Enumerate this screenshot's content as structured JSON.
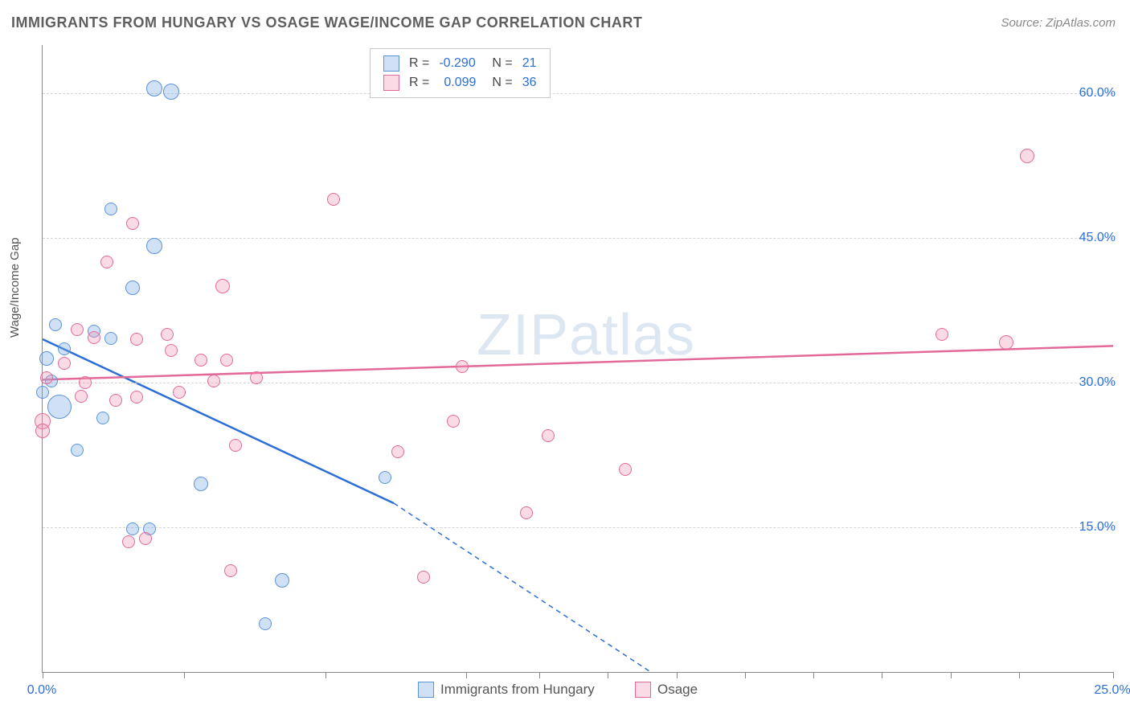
{
  "title": "IMMIGRANTS FROM HUNGARY VS OSAGE WAGE/INCOME GAP CORRELATION CHART",
  "source": "Source: ZipAtlas.com",
  "ylabel": "Wage/Income Gap",
  "watermark": "ZIPatlas",
  "chart": {
    "type": "scatter",
    "xlim": [
      0,
      25
    ],
    "ylim": [
      0,
      65
    ],
    "xtick_positions": [
      0,
      3.3,
      6.6,
      9.9,
      11.6,
      13.2,
      14.8,
      16.4,
      18.0,
      19.6,
      21.2,
      22.8,
      25.0
    ],
    "xtick_labels": {
      "0": "0.0%",
      "25": "25.0%"
    },
    "ytick_positions": [
      15,
      30,
      45,
      60
    ],
    "ytick_labels": [
      "15.0%",
      "30.0%",
      "45.0%",
      "60.0%"
    ],
    "grid_color": "#d5d5d5",
    "axis_color": "#888888",
    "background_color": "#ffffff",
    "label_fontsize": 15,
    "tick_fontsize": 16,
    "tick_label_color": "#2b6fd6"
  },
  "series": [
    {
      "key": "hungary",
      "label": "Immigrants from Hungary",
      "fill": "rgba(120,170,230,0.35)",
      "stroke": "#5a94d8",
      "R": "-0.290",
      "N": "21",
      "trend": {
        "x1": 0,
        "y1": 34.5,
        "x2": 8.2,
        "y2": 17.5,
        "ext_x2": 14.2,
        "ext_y2": 0,
        "color": "#2b6fd6",
        "width": 2.5
      },
      "points": [
        {
          "x": 2.6,
          "y": 60.5,
          "r": 10
        },
        {
          "x": 3.0,
          "y": 60.2,
          "r": 10
        },
        {
          "x": 1.6,
          "y": 48.0,
          "r": 8
        },
        {
          "x": 2.6,
          "y": 44.2,
          "r": 10
        },
        {
          "x": 2.1,
          "y": 39.8,
          "r": 9
        },
        {
          "x": 0.3,
          "y": 36.0,
          "r": 8
        },
        {
          "x": 1.2,
          "y": 35.3,
          "r": 8
        },
        {
          "x": 1.6,
          "y": 34.6,
          "r": 8
        },
        {
          "x": 0.1,
          "y": 32.5,
          "r": 9
        },
        {
          "x": 0.2,
          "y": 30.2,
          "r": 8
        },
        {
          "x": 0.0,
          "y": 29.0,
          "r": 8
        },
        {
          "x": 0.4,
          "y": 27.5,
          "r": 15
        },
        {
          "x": 1.4,
          "y": 26.3,
          "r": 8
        },
        {
          "x": 0.8,
          "y": 23.0,
          "r": 8
        },
        {
          "x": 8.0,
          "y": 20.2,
          "r": 8
        },
        {
          "x": 3.7,
          "y": 19.5,
          "r": 9
        },
        {
          "x": 2.1,
          "y": 14.8,
          "r": 8
        },
        {
          "x": 2.5,
          "y": 14.8,
          "r": 8
        },
        {
          "x": 5.6,
          "y": 9.5,
          "r": 9
        },
        {
          "x": 5.2,
          "y": 5.0,
          "r": 8
        },
        {
          "x": 0.5,
          "y": 33.5,
          "r": 8
        }
      ]
    },
    {
      "key": "osage",
      "label": "Osage",
      "fill": "rgba(240,150,180,0.35)",
      "stroke": "#e26a9a",
      "R": "0.099",
      "N": "36",
      "trend": {
        "x1": 0,
        "y1": 30.3,
        "x2": 25,
        "y2": 33.8,
        "color": "#e26a9a",
        "width": 2.5
      },
      "points": [
        {
          "x": 23.0,
          "y": 53.5,
          "r": 9
        },
        {
          "x": 6.8,
          "y": 49.0,
          "r": 8
        },
        {
          "x": 2.1,
          "y": 46.5,
          "r": 8
        },
        {
          "x": 1.5,
          "y": 42.5,
          "r": 8
        },
        {
          "x": 4.2,
          "y": 40.0,
          "r": 9
        },
        {
          "x": 21.0,
          "y": 35.0,
          "r": 8
        },
        {
          "x": 22.5,
          "y": 34.2,
          "r": 9
        },
        {
          "x": 0.8,
          "y": 35.5,
          "r": 8
        },
        {
          "x": 1.2,
          "y": 34.7,
          "r": 8
        },
        {
          "x": 2.2,
          "y": 34.5,
          "r": 8
        },
        {
          "x": 2.9,
          "y": 35.0,
          "r": 8
        },
        {
          "x": 3.0,
          "y": 33.3,
          "r": 8
        },
        {
          "x": 3.7,
          "y": 32.3,
          "r": 8
        },
        {
          "x": 4.3,
          "y": 32.3,
          "r": 8
        },
        {
          "x": 9.8,
          "y": 31.7,
          "r": 8
        },
        {
          "x": 5.0,
          "y": 30.5,
          "r": 8
        },
        {
          "x": 4.0,
          "y": 30.2,
          "r": 8
        },
        {
          "x": 0.1,
          "y": 30.5,
          "r": 8
        },
        {
          "x": 0.9,
          "y": 28.6,
          "r": 8
        },
        {
          "x": 2.2,
          "y": 28.5,
          "r": 8
        },
        {
          "x": 1.7,
          "y": 28.2,
          "r": 8
        },
        {
          "x": 0.0,
          "y": 26.0,
          "r": 10
        },
        {
          "x": 9.6,
          "y": 26.0,
          "r": 8
        },
        {
          "x": 11.8,
          "y": 24.5,
          "r": 8
        },
        {
          "x": 4.5,
          "y": 23.5,
          "r": 8
        },
        {
          "x": 8.3,
          "y": 22.8,
          "r": 8
        },
        {
          "x": 13.6,
          "y": 21.0,
          "r": 8
        },
        {
          "x": 11.3,
          "y": 16.5,
          "r": 8
        },
        {
          "x": 2.4,
          "y": 13.8,
          "r": 8
        },
        {
          "x": 2.0,
          "y": 13.5,
          "r": 8
        },
        {
          "x": 4.4,
          "y": 10.5,
          "r": 8
        },
        {
          "x": 8.9,
          "y": 9.8,
          "r": 8
        },
        {
          "x": 0.0,
          "y": 25.0,
          "r": 9
        },
        {
          "x": 0.5,
          "y": 32.0,
          "r": 8
        },
        {
          "x": 1.0,
          "y": 30.0,
          "r": 8
        },
        {
          "x": 3.2,
          "y": 29.0,
          "r": 8
        }
      ]
    }
  ],
  "legend_top": {
    "R_label": "R =",
    "N_label": "N ="
  },
  "legend_bottom": [
    {
      "series_key": "hungary"
    },
    {
      "series_key": "osage"
    }
  ]
}
